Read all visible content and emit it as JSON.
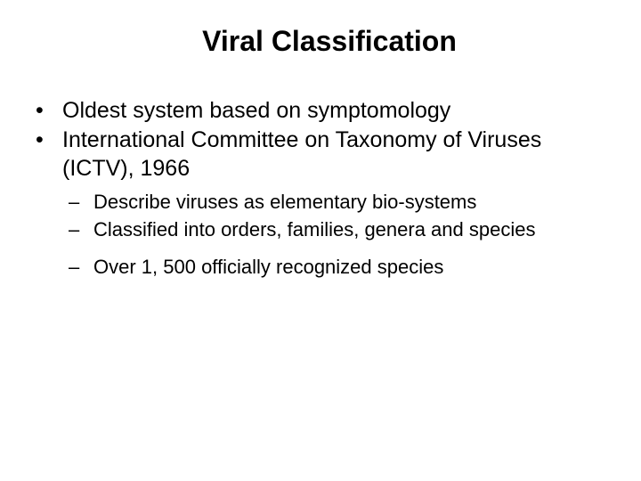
{
  "title": "Viral Classification",
  "bullets": [
    {
      "text": "Oldest system based on symptomology"
    },
    {
      "text": "International Committee on Taxonomy of Viruses (ICTV), 1966"
    }
  ],
  "subbullets": [
    {
      "text": "Describe viruses as elementary bio-systems"
    },
    {
      "text": "Classified into orders, families, genera and species"
    },
    {
      "text": "Over 1, 500 officially recognized species"
    }
  ],
  "styling": {
    "background_color": "#ffffff",
    "text_color": "#000000",
    "title_fontsize": 32,
    "title_fontweight": "bold",
    "bullet_fontsize": 25,
    "subbullet_fontsize": 22,
    "bullet_marker": "•",
    "subbullet_marker": "–",
    "font_family": "Arial, Helvetica, sans-serif"
  }
}
